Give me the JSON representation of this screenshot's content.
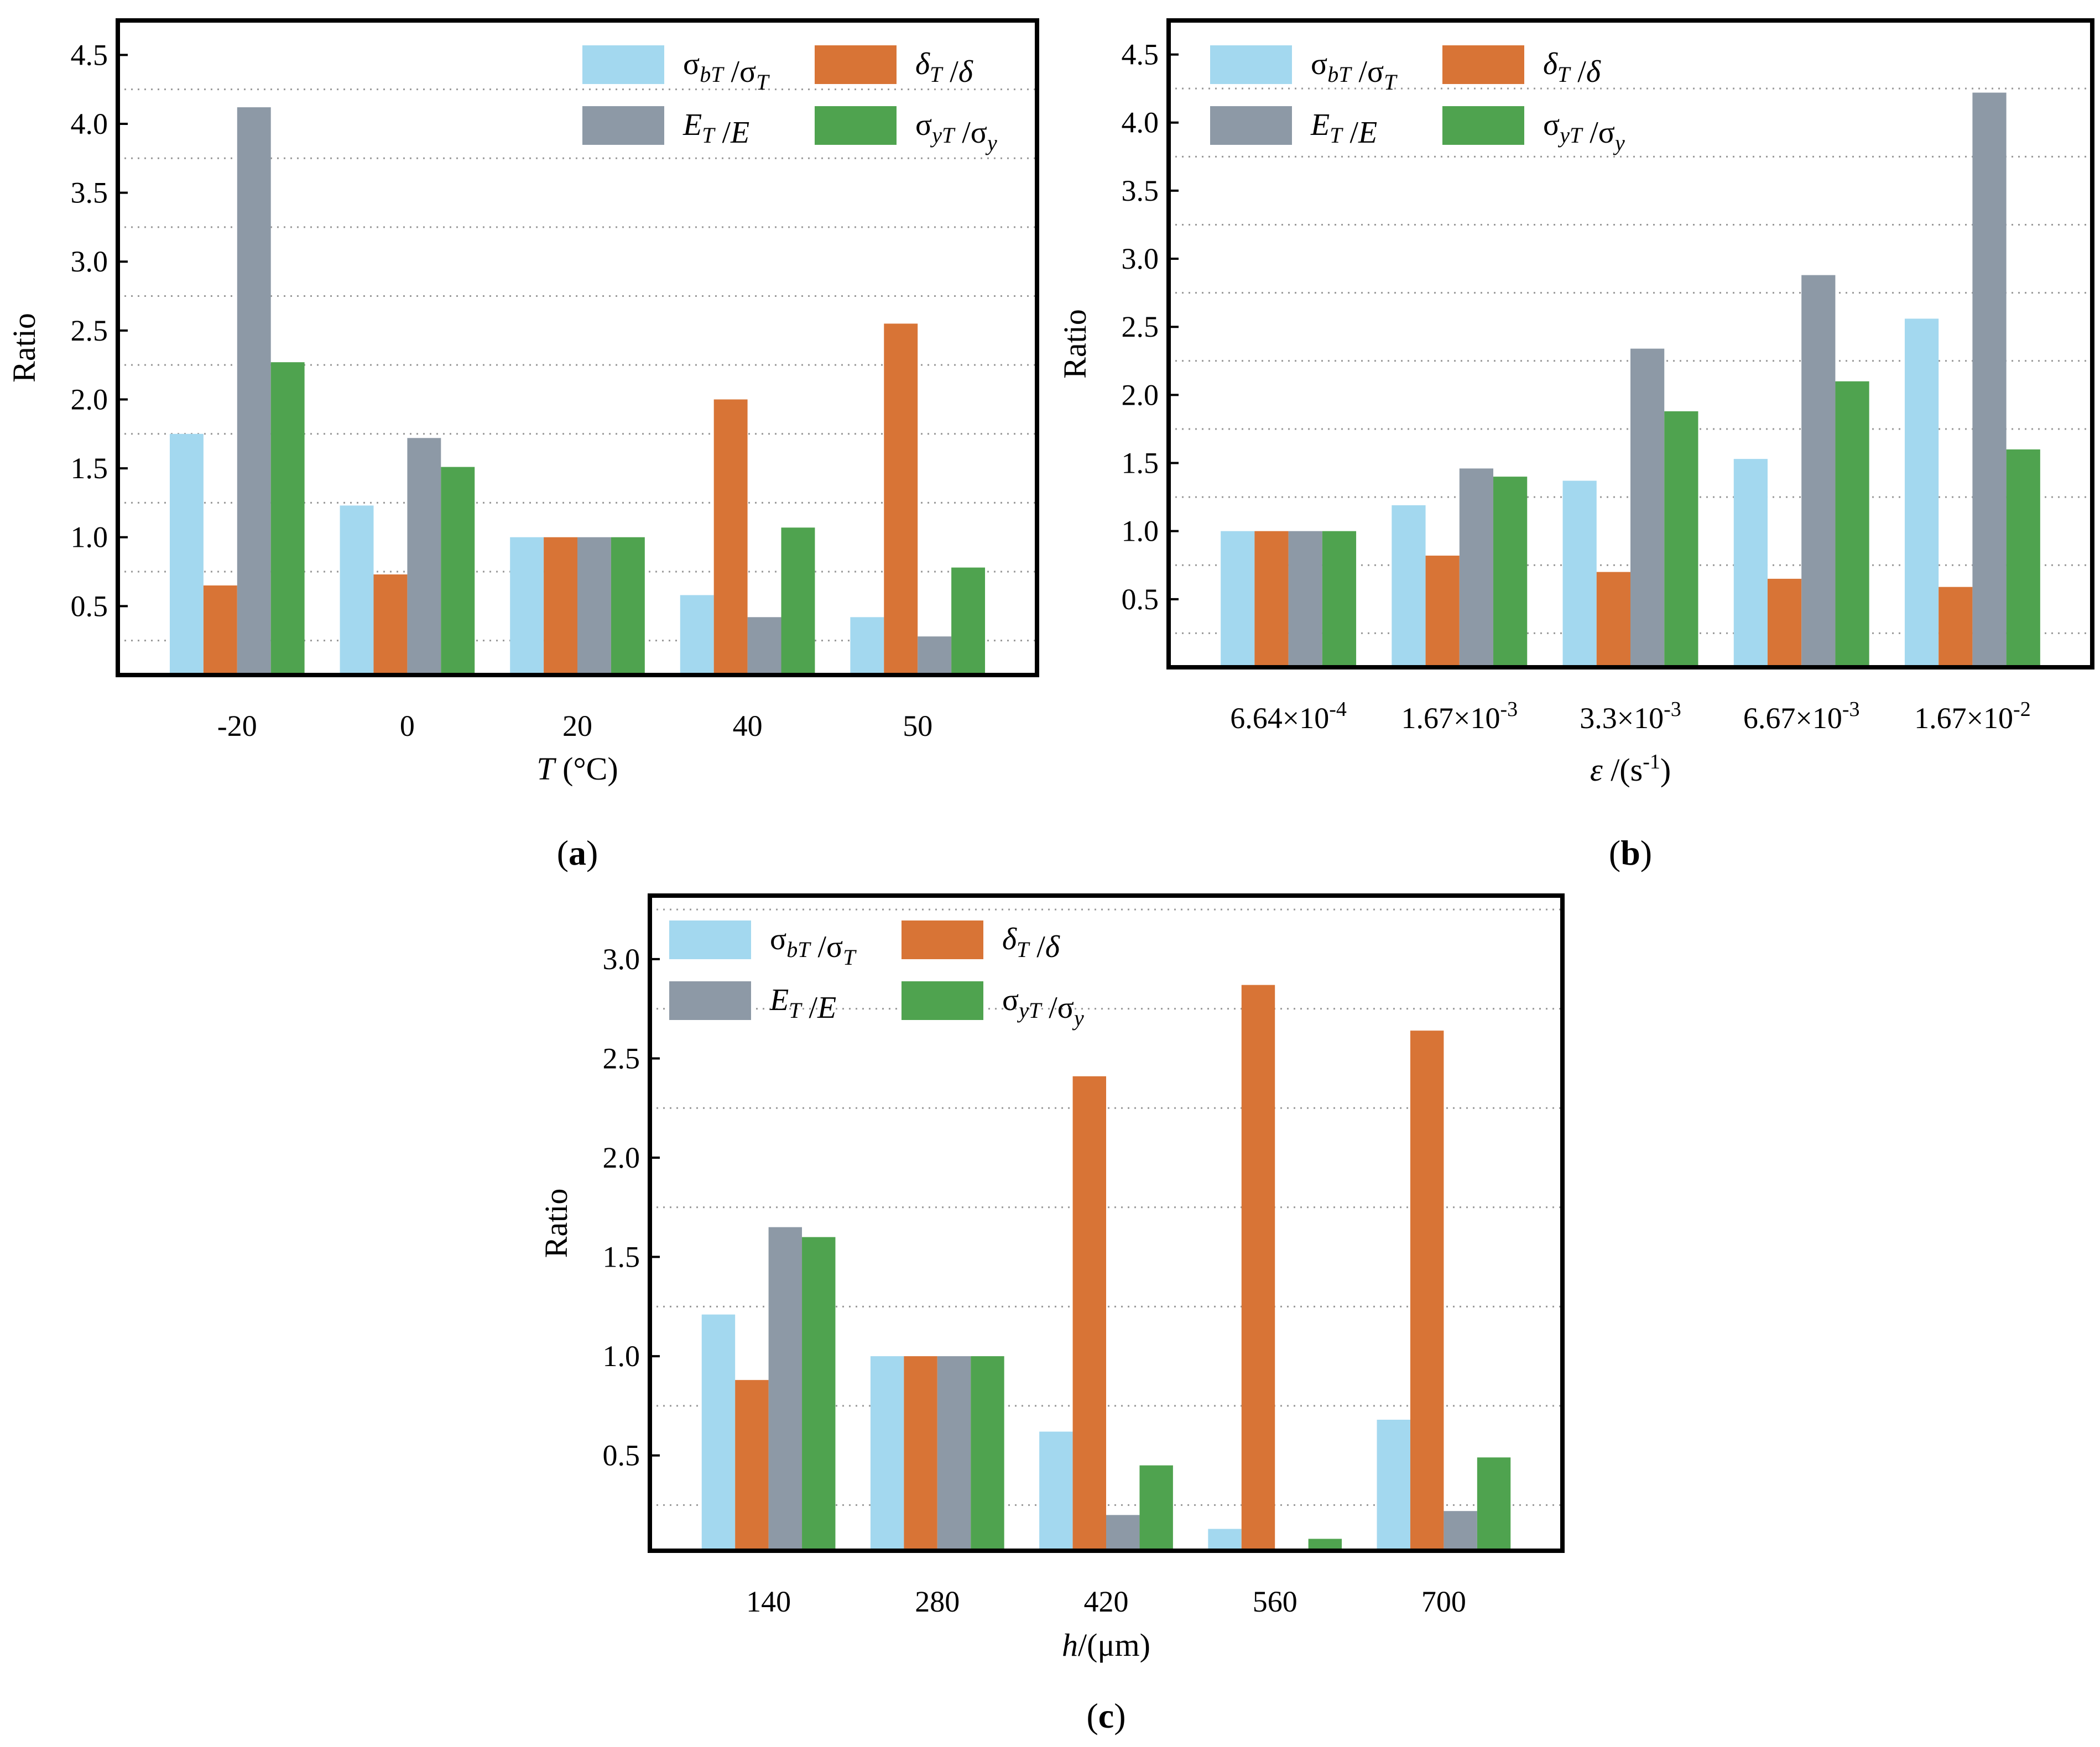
{
  "chart_data": [
    {
      "type": "bar",
      "panel_label": "(a)",
      "categories": [
        "-20",
        "0",
        "20",
        "40",
        "50"
      ],
      "series": [
        {
          "name": "σbT /σT",
          "values": [
            1.75,
            1.23,
            1.0,
            0.58,
            0.42
          ]
        },
        {
          "name": "δT /δ",
          "values": [
            0.65,
            0.73,
            1.0,
            2.0,
            2.55
          ]
        },
        {
          "name": "ET /E",
          "values": [
            4.12,
            1.72,
            1.0,
            0.42,
            0.28
          ]
        },
        {
          "name": "σyT /σy",
          "values": [
            2.27,
            1.51,
            1.0,
            1.07,
            0.78
          ]
        }
      ],
      "xlabel": "T (°C)",
      "ylabel": "Ratio",
      "ylim": [
        0,
        4.75
      ],
      "yticks": [
        "0.5",
        "1.0",
        "1.5",
        "2.0",
        "2.5",
        "3.0",
        "3.5",
        "4.0",
        "4.5"
      ],
      "legend_position": "top-right",
      "grid": "horizontal dotted"
    },
    {
      "type": "bar",
      "panel_label": "(b)",
      "categories": [
        "6.64×10-4",
        "1.67×10-3",
        "3.3×10-3",
        "6.67×10-3",
        "1.67×10-2"
      ],
      "series": [
        {
          "name": "σbT /σT",
          "values": [
            1.0,
            1.19,
            1.37,
            1.53,
            2.56
          ]
        },
        {
          "name": "δT /δ",
          "values": [
            1.0,
            0.82,
            0.7,
            0.65,
            0.59
          ]
        },
        {
          "name": "ET /E",
          "values": [
            1.0,
            1.46,
            2.34,
            2.88,
            4.22
          ]
        },
        {
          "name": "σyT /σy",
          "values": [
            1.0,
            1.4,
            1.88,
            2.1,
            1.6
          ]
        }
      ],
      "xlabel": "ε /(s-1)",
      "ylabel": "Ratio",
      "ylim": [
        0,
        4.75
      ],
      "yticks": [
        "0.5",
        "1.0",
        "1.5",
        "2.0",
        "2.5",
        "3.0",
        "3.5",
        "4.0",
        "4.5"
      ],
      "legend_position": "top",
      "grid": "horizontal dotted"
    },
    {
      "type": "bar",
      "panel_label": "(c)",
      "categories": [
        "140",
        "280",
        "420",
        "560",
        "700"
      ],
      "series": [
        {
          "name": "σbT /σT",
          "values": [
            1.21,
            1.0,
            0.62,
            0.13,
            0.68
          ]
        },
        {
          "name": "δT /δ",
          "values": [
            0.88,
            1.0,
            2.41,
            2.87,
            2.64
          ]
        },
        {
          "name": "ET /E",
          "values": [
            1.65,
            1.0,
            0.2,
            0.02,
            0.22
          ]
        },
        {
          "name": "σyT /σy",
          "values": [
            1.6,
            1.0,
            0.45,
            0.08,
            0.49
          ]
        }
      ],
      "xlabel": "h/(μm)",
      "ylabel": "Ratio",
      "ylim": [
        0.02,
        3.32
      ],
      "yticks": [
        "0.5",
        "1.0",
        "1.5",
        "2.0",
        "2.5",
        "3.0"
      ],
      "legend_position": "top-left",
      "grid": "horizontal dotted"
    }
  ],
  "colors": [
    "#a3d8ef",
    "#d87436",
    "#8d99a6",
    "#4fa34f"
  ]
}
